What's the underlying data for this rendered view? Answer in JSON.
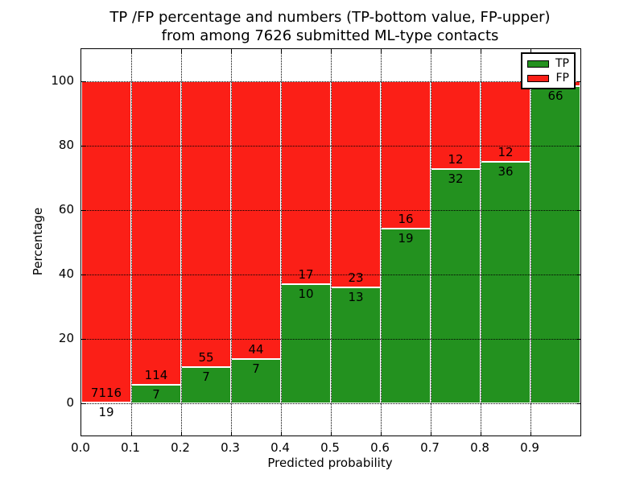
{
  "figure": {
    "title_line1": "TP /FP percentage and numbers (TP-bottom value, FP-upper)",
    "title_line2": "from among 7626 submitted ML-type contacts"
  },
  "chart_data": {
    "type": "bar",
    "stacked": true,
    "title": "TP /FP percentage and numbers (TP-bottom value, FP-upper) from among 7626 submitted ML-type contacts",
    "xlabel": "Predicted probability",
    "ylabel": "Percentage",
    "xlim": [
      0.0,
      1.0
    ],
    "ylim": [
      -10,
      110
    ],
    "x_tick_labels": [
      "0.0",
      "0.1",
      "0.2",
      "0.3",
      "0.4",
      "0.5",
      "0.6",
      "0.7",
      "0.8",
      "0.9"
    ],
    "y_tick_values": [
      0,
      20,
      40,
      60,
      80,
      100
    ],
    "grid": true,
    "colors": {
      "tp": "#23911F",
      "fp": "#FB1F17"
    },
    "legend": {
      "position": "upper right",
      "entries": [
        {
          "label": "TP",
          "color": "#23911F"
        },
        {
          "label": "FP",
          "color": "#FB1F17"
        }
      ]
    },
    "series": [
      {
        "name": "TP",
        "values_pct": [
          0.27,
          5.79,
          11.29,
          13.73,
          37.04,
          36.11,
          54.29,
          72.73,
          75.0,
          98.5
        ]
      },
      {
        "name": "FP",
        "values_pct": [
          99.73,
          94.21,
          88.71,
          86.27,
          62.96,
          63.89,
          45.71,
          27.27,
          25.0,
          1.5
        ]
      }
    ],
    "bars": [
      {
        "x_range": [
          0.0,
          0.1
        ],
        "tp_count": 19,
        "fp_count": 7116,
        "tp_pct": 0.27
      },
      {
        "x_range": [
          0.1,
          0.2
        ],
        "tp_count": 7,
        "fp_count": 114,
        "tp_pct": 5.79
      },
      {
        "x_range": [
          0.2,
          0.3
        ],
        "tp_count": 7,
        "fp_count": 55,
        "tp_pct": 11.29
      },
      {
        "x_range": [
          0.3,
          0.4
        ],
        "tp_count": 7,
        "fp_count": 44,
        "tp_pct": 13.73
      },
      {
        "x_range": [
          0.4,
          0.5
        ],
        "tp_count": 10,
        "fp_count": 17,
        "tp_pct": 37.04
      },
      {
        "x_range": [
          0.5,
          0.6
        ],
        "tp_count": 13,
        "fp_count": 23,
        "tp_pct": 36.11
      },
      {
        "x_range": [
          0.6,
          0.7
        ],
        "tp_count": 19,
        "fp_count": 16,
        "tp_pct": 54.29
      },
      {
        "x_range": [
          0.7,
          0.8
        ],
        "tp_count": 32,
        "fp_count": 12,
        "tp_pct": 72.73
      },
      {
        "x_range": [
          0.8,
          0.9
        ],
        "tp_count": 36,
        "fp_count": 12,
        "tp_pct": 75.0
      },
      {
        "x_range": [
          0.9,
          1.0
        ],
        "tp_count": 66,
        "fp_count": null,
        "tp_pct": 98.5
      }
    ]
  }
}
